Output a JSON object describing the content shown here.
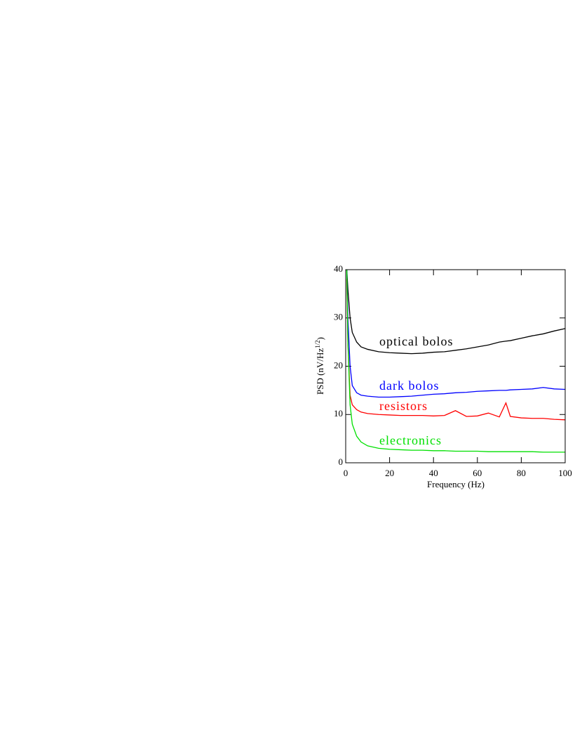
{
  "chart_data": {
    "type": "line",
    "x_label": "Frequency (Hz)",
    "y_label": "PSD (nV/Hz",
    "y_label_sup": "1/2",
    "y_label_end": ")",
    "x": [
      0.5,
      1,
      2,
      3,
      5,
      7,
      10,
      15,
      20,
      25,
      30,
      35,
      40,
      45,
      50,
      55,
      60,
      65,
      70,
      73,
      75,
      80,
      85,
      90,
      95,
      100
    ],
    "series": [
      {
        "name": "optical bolos",
        "color": "#000000",
        "values": [
          40,
          36,
          30,
          27,
          25,
          24,
          23.5,
          23,
          22.8,
          22.7,
          22.6,
          22.7,
          22.9,
          23,
          23.3,
          23.6,
          24,
          24.4,
          25,
          25.2,
          25.3,
          25.8,
          26.3,
          26.7,
          27.3,
          27.8
        ]
      },
      {
        "name": "dark bolos",
        "color": "#0000ff",
        "values": [
          40,
          30,
          20,
          16,
          14.5,
          14,
          13.8,
          13.6,
          13.6,
          13.7,
          13.8,
          14,
          14.2,
          14.3,
          14.5,
          14.6,
          14.8,
          14.9,
          15,
          15,
          15.1,
          15.2,
          15.3,
          15.6,
          15.3,
          15.2
        ]
      },
      {
        "name": "resistors",
        "color": "#ff0000",
        "values": [
          38,
          25,
          14,
          12,
          11,
          10.5,
          10.2,
          10,
          9.9,
          9.8,
          9.8,
          9.8,
          9.7,
          9.8,
          10.8,
          9.6,
          9.7,
          10.3,
          9.5,
          12.4,
          9.6,
          9.3,
          9.2,
          9.2,
          9,
          8.9
        ]
      },
      {
        "name": "electronics",
        "color": "#00e000",
        "values": [
          40,
          25,
          12,
          8,
          5.5,
          4.3,
          3.5,
          3,
          2.8,
          2.7,
          2.6,
          2.6,
          2.5,
          2.5,
          2.4,
          2.4,
          2.4,
          2.3,
          2.3,
          2.3,
          2.3,
          2.3,
          2.3,
          2.2,
          2.2,
          2.2
        ]
      }
    ],
    "xlim": [
      0,
      100
    ],
    "xticks": [
      0,
      20,
      40,
      60,
      80,
      100
    ],
    "ylim": [
      0,
      40
    ],
    "yticks": [
      0,
      10,
      20,
      30,
      40
    ]
  }
}
